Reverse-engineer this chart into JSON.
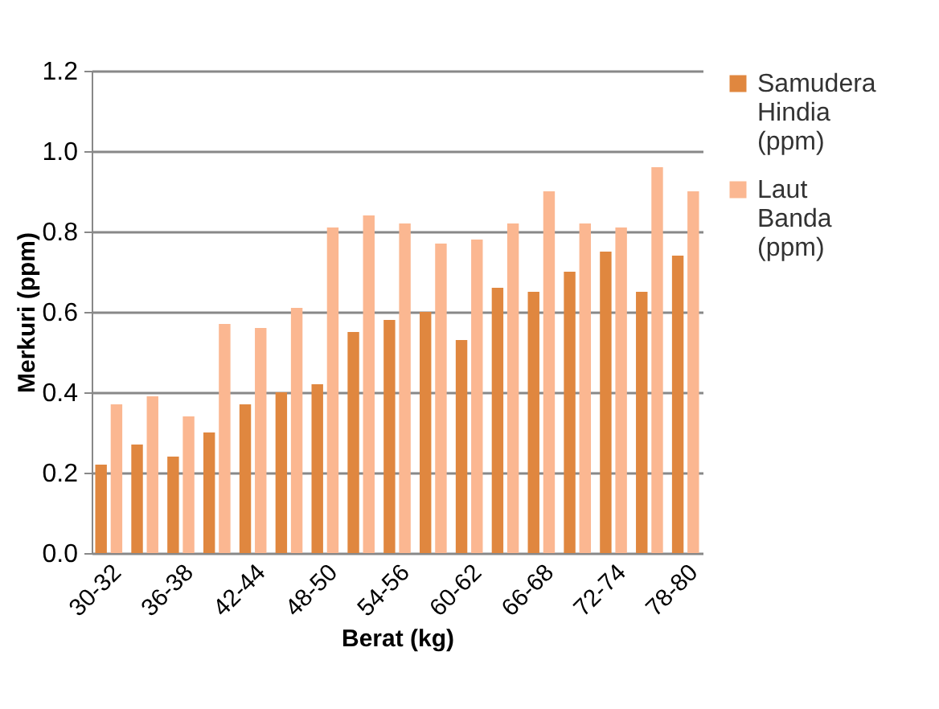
{
  "chart_data": {
    "type": "bar",
    "xlabel": "Berat (kg)",
    "ylabel": "Merkuri (ppm)",
    "categories": [
      "30-32",
      null,
      "36-38",
      null,
      "42-44",
      null,
      "48-50",
      null,
      "54-56",
      null,
      "60-62",
      null,
      "66-68",
      null,
      "72-74",
      null,
      "78-80"
    ],
    "series": [
      {
        "name": "Samudera Hindia (ppm)",
        "color": "#e0873f",
        "values": [
          0.22,
          0.27,
          0.24,
          0.3,
          0.37,
          0.4,
          0.42,
          0.55,
          0.58,
          0.6,
          0.53,
          0.66,
          0.65,
          0.7,
          0.75,
          0.65,
          0.74
        ]
      },
      {
        "name": "Laut Banda (ppm)",
        "color": "#fbb791",
        "values": [
          0.37,
          0.39,
          0.34,
          0.57,
          0.56,
          0.61,
          0.81,
          0.84,
          0.82,
          0.77,
          0.78,
          0.82,
          0.9,
          0.82,
          0.81,
          0.96,
          0.9
        ]
      }
    ],
    "ylim": [
      0,
      1.2
    ],
    "yticks": [
      {
        "value": 0,
        "label": "0.0"
      },
      0.2,
      0.4,
      0.6,
      0.8,
      {
        "value": 1,
        "label": "1.0"
      },
      1.2
    ],
    "grid": "y",
    "legend": "right"
  }
}
